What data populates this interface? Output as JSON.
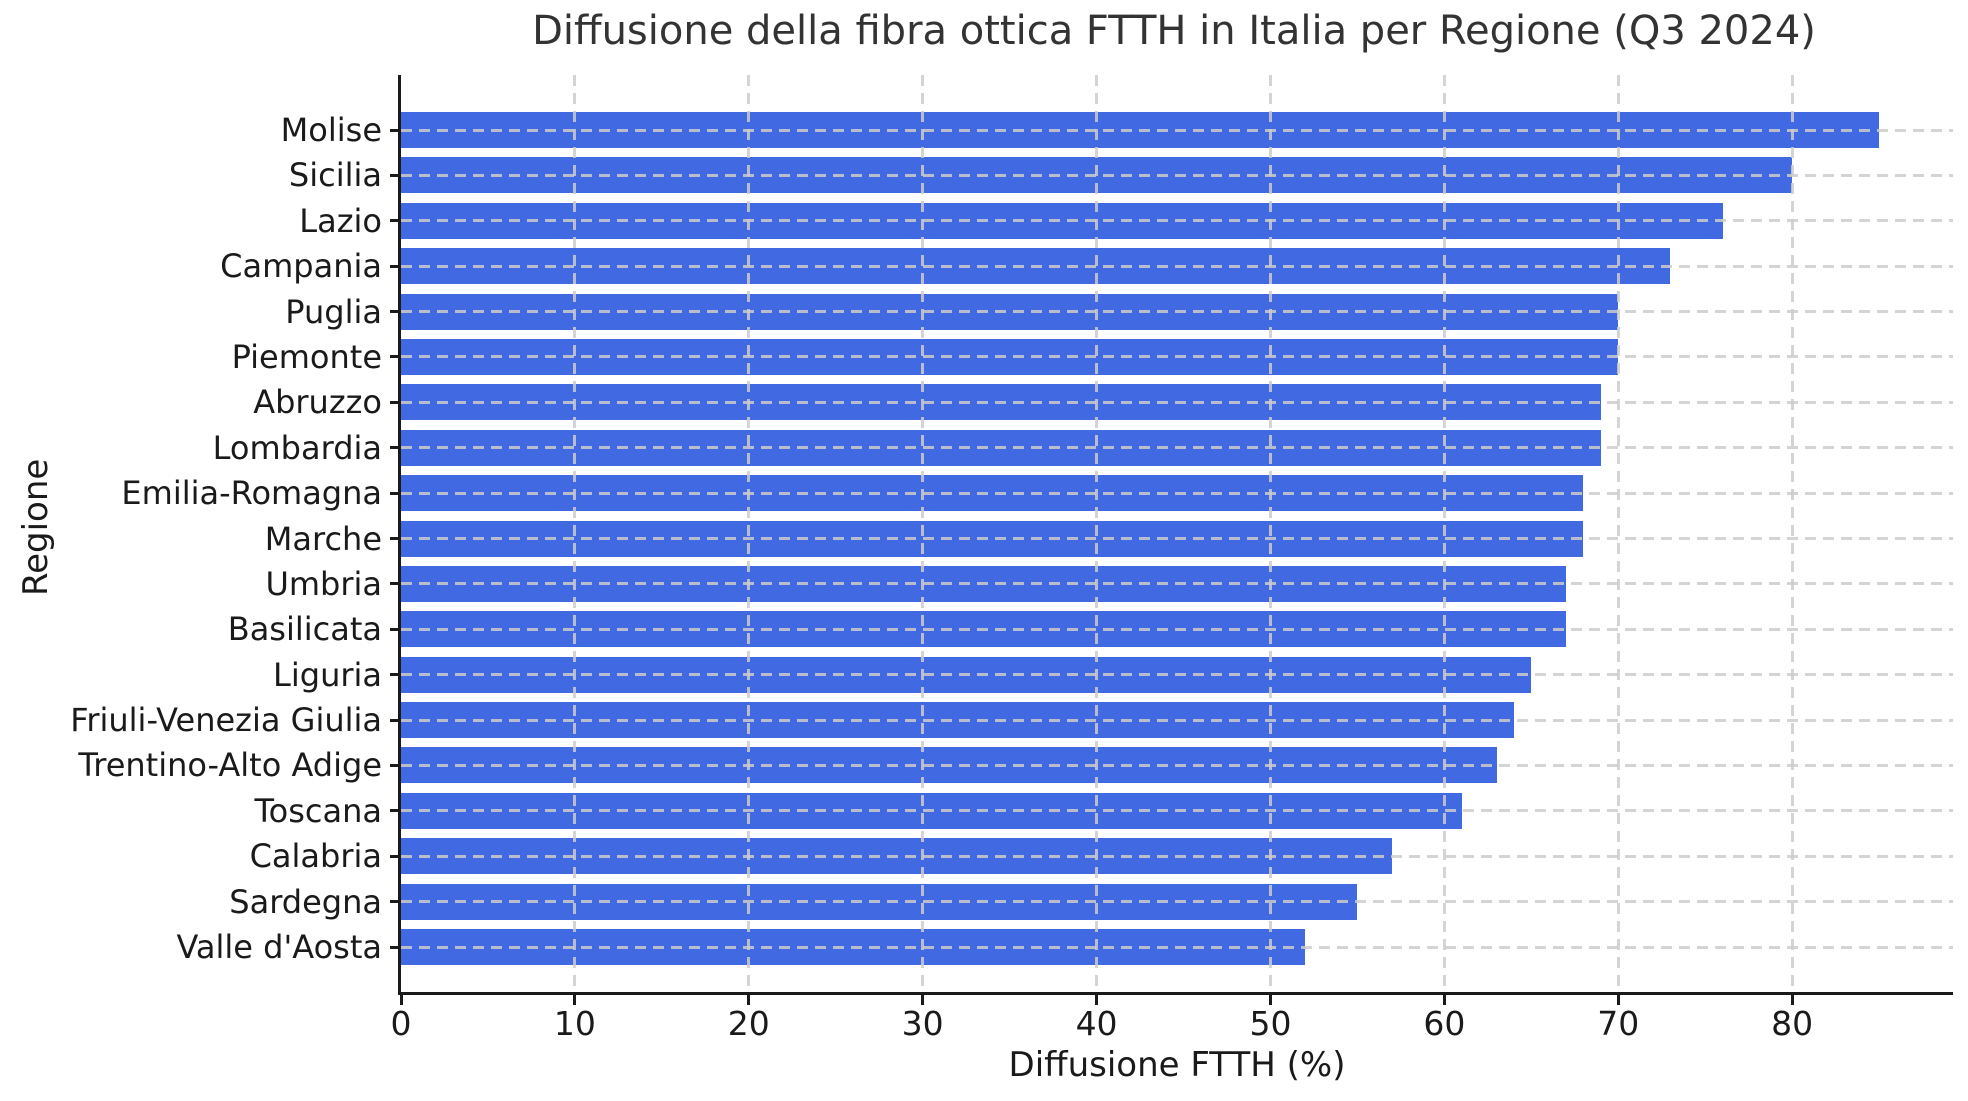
{
  "page": {
    "background_color": "#ffffff"
  },
  "chart_data": {
    "type": "bar",
    "orientation": "horizontal",
    "title": "Diffusione della fibra ottica FTTH in Italia per Regione (Q3 2024)",
    "xlabel": "Diffusione FTTH (%)",
    "ylabel": "Regione",
    "categories": [
      "Molise",
      "Sicilia",
      "Lazio",
      "Campania",
      "Puglia",
      "Piemonte",
      "Abruzzo",
      "Lombardia",
      "Emilia-Romagna",
      "Marche",
      "Umbria",
      "Basilicata",
      "Liguria",
      "Friuli-Venezia Giulia",
      "Trentino-Alto Adige",
      "Toscana",
      "Calabria",
      "Sardegna",
      "Valle d'Aosta"
    ],
    "values": [
      85,
      80,
      76,
      73,
      70,
      70,
      69,
      69,
      68,
      68,
      67,
      67,
      65,
      64,
      63,
      61,
      57,
      55,
      52
    ],
    "xticks": [
      0,
      10,
      20,
      30,
      40,
      50,
      60,
      70,
      80
    ],
    "xlim": [
      0,
      89.25
    ],
    "grid": "dashed, both axes, drawn over bars",
    "legend": "none",
    "bar_color": "#4169E1",
    "grid_color": "#cccccc",
    "axis_color": "#1a1a1a",
    "title_color": "#333333"
  }
}
